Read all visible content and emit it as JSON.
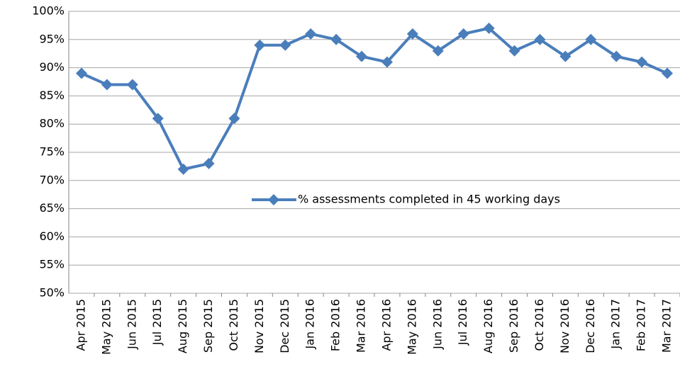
{
  "chart_data": {
    "type": "line",
    "categories": [
      "Apr 2015",
      "May 2015",
      "Jun 2015",
      "Jul 2015",
      "Aug 2015",
      "Sep 2015",
      "Oct 2015",
      "Nov 2015",
      "Dec 2015",
      "Jan 2016",
      "Feb 2016",
      "Mar 2016",
      "Apr 2016",
      "May 2016",
      "Jun 2016",
      "Jul 2016",
      "Aug 2016",
      "Sep 2016",
      "Oct 2016",
      "Nov 2016",
      "Dec 2016",
      "Jan 2017",
      "Feb 2017",
      "Mar 2017"
    ],
    "series": [
      {
        "name": "% assessments completed in 45 working days",
        "color": "#4a7ebb",
        "values": [
          89,
          87,
          87,
          81,
          72,
          73,
          81,
          94,
          94,
          96,
          95,
          92,
          91,
          96,
          93,
          96,
          97,
          93,
          95,
          92,
          95,
          92,
          91,
          89
        ]
      }
    ],
    "ylim": [
      50,
      100
    ],
    "yticks": [
      {
        "value": 50,
        "label": "50%"
      },
      {
        "value": 55,
        "label": "55%"
      },
      {
        "value": 60,
        "label": "60%"
      },
      {
        "value": 65,
        "label": "65%"
      },
      {
        "value": 70,
        "label": "70%"
      },
      {
        "value": 75,
        "label": "75%"
      },
      {
        "value": 80,
        "label": "80%"
      },
      {
        "value": 85,
        "label": "85%"
      },
      {
        "value": 90,
        "label": "90%"
      },
      {
        "value": 95,
        "label": "95%"
      },
      {
        "value": 100,
        "label": "100%"
      }
    ],
    "grid": true
  }
}
